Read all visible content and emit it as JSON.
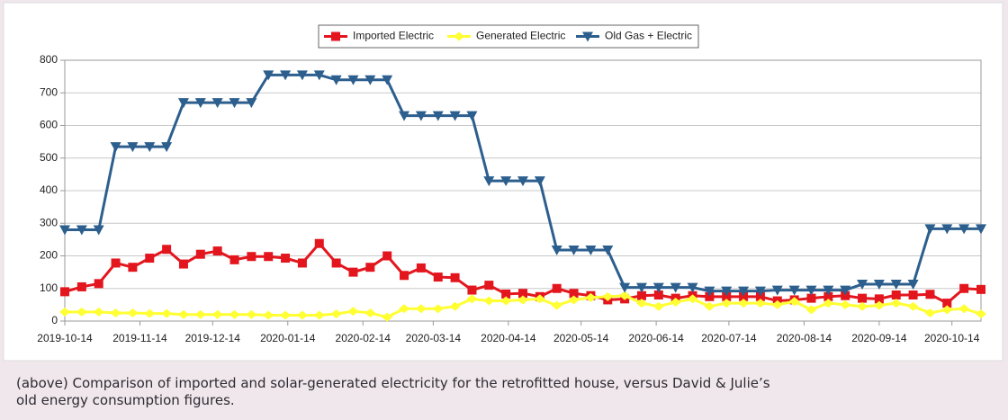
{
  "chart_data": {
    "type": "line",
    "x": [
      "2019-10-14",
      "2019-10-21",
      "2019-10-28",
      "2019-11-04",
      "2019-11-11",
      "2019-11-18",
      "2019-11-25",
      "2019-12-02",
      "2019-12-09",
      "2019-12-16",
      "2019-12-23",
      "2019-12-30",
      "2020-01-06",
      "2020-01-13",
      "2020-01-20",
      "2020-01-27",
      "2020-02-03",
      "2020-02-10",
      "2020-02-17",
      "2020-02-24",
      "2020-03-02",
      "2020-03-09",
      "2020-03-16",
      "2020-03-23",
      "2020-03-30",
      "2020-04-06",
      "2020-04-13",
      "2020-04-20",
      "2020-04-27",
      "2020-05-04",
      "2020-05-11",
      "2020-05-18",
      "2020-05-25",
      "2020-06-01",
      "2020-06-08",
      "2020-06-15",
      "2020-06-22",
      "2020-06-29",
      "2020-07-06",
      "2020-07-13",
      "2020-07-20",
      "2020-07-27",
      "2020-08-03",
      "2020-08-10",
      "2020-08-17",
      "2020-08-24",
      "2020-08-31",
      "2020-09-07",
      "2020-09-14",
      "2020-09-21",
      "2020-09-28",
      "2020-10-05",
      "2020-10-12",
      "2020-10-19",
      "2020-10-26"
    ],
    "series": [
      {
        "name": "Imported Electric",
        "color": "#e3161e",
        "marker": "square",
        "values": [
          90,
          105,
          115,
          178,
          165,
          193,
          220,
          175,
          205,
          215,
          188,
          198,
          198,
          193,
          178,
          238,
          178,
          150,
          165,
          200,
          140,
          163,
          135,
          133,
          95,
          110,
          83,
          85,
          75,
          100,
          85,
          78,
          65,
          68,
          78,
          80,
          70,
          78,
          75,
          75,
          75,
          75,
          62,
          65,
          70,
          75,
          78,
          70,
          68,
          80,
          80,
          82,
          55,
          100,
          97
        ]
      },
      {
        "name": "Generated Electric",
        "color": "#ffff33",
        "marker": "diamond",
        "values": [
          28,
          28,
          28,
          25,
          25,
          23,
          23,
          20,
          20,
          20,
          20,
          20,
          18,
          18,
          18,
          18,
          22,
          30,
          25,
          12,
          38,
          38,
          38,
          45,
          68,
          62,
          62,
          65,
          68,
          48,
          65,
          72,
          75,
          78,
          55,
          45,
          58,
          68,
          45,
          55,
          55,
          55,
          50,
          60,
          35,
          55,
          50,
          45,
          48,
          55,
          45,
          25,
          35,
          38,
          22
        ]
      },
      {
        "name": "Old Gas + Electric",
        "color": "#2d5f8e",
        "marker": "triangle-down",
        "values": [
          280,
          280,
          280,
          535,
          535,
          535,
          535,
          670,
          670,
          670,
          670,
          670,
          755,
          755,
          755,
          755,
          740,
          740,
          740,
          740,
          630,
          630,
          630,
          630,
          630,
          430,
          430,
          430,
          430,
          218,
          218,
          218,
          218,
          103,
          103,
          103,
          103,
          103,
          92,
          92,
          92,
          92,
          95,
          95,
          95,
          95,
          95,
          113,
          113,
          113,
          113,
          283,
          283,
          283,
          283
        ]
      }
    ],
    "xlim": [
      "2019-10-14",
      "2020-10-26"
    ],
    "xticks": [
      "2019-10-14",
      "2019-11-14",
      "2019-12-14",
      "2020-01-14",
      "2020-02-14",
      "2020-03-14",
      "2020-04-14",
      "2020-05-14",
      "2020-06-14",
      "2020-07-14",
      "2020-08-14",
      "2020-09-14",
      "2020-10-14"
    ],
    "ylim": [
      0,
      800
    ],
    "yticks": [
      0,
      100,
      200,
      300,
      400,
      500,
      600,
      700,
      800
    ],
    "grid": true,
    "legend": "top"
  },
  "caption": [
    "(above) Comparison of imported and solar-generated electricity for the retrofitted house, versus David & Julie’s",
    "old energy consumption figures."
  ]
}
